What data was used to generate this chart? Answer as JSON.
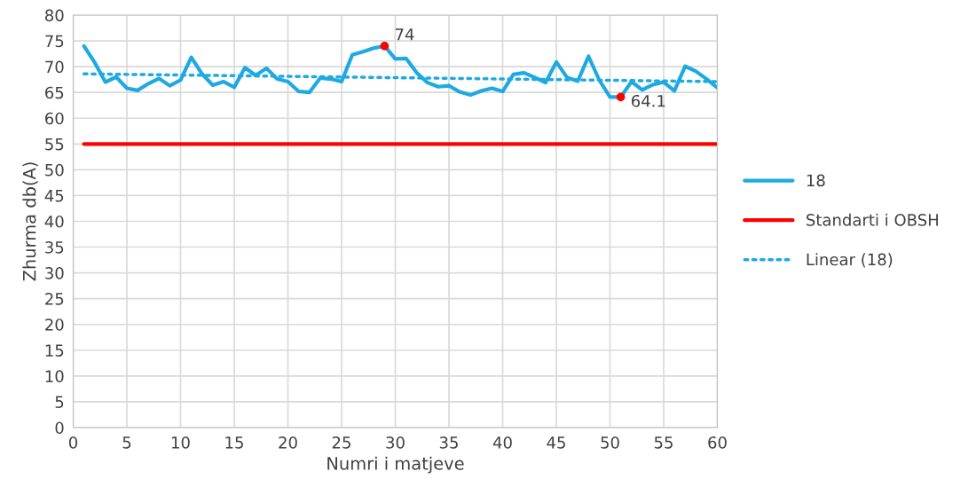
{
  "chart_data": {
    "type": "line",
    "xlabel": "Numri i matjeve",
    "ylabel": "Zhurma db(A)",
    "x": [
      1,
      2,
      3,
      4,
      5,
      6,
      7,
      8,
      9,
      10,
      11,
      12,
      13,
      14,
      15,
      16,
      17,
      18,
      19,
      20,
      21,
      22,
      23,
      24,
      25,
      26,
      27,
      28,
      29,
      30,
      31,
      32,
      33,
      34,
      35,
      36,
      37,
      38,
      39,
      40,
      41,
      42,
      43,
      44,
      45,
      46,
      47,
      48,
      49,
      50,
      51,
      52,
      53,
      54,
      55,
      56,
      57,
      58,
      59,
      60
    ],
    "series": [
      {
        "name": "18",
        "color": "#1eaae1",
        "line_style": "solid",
        "values": [
          74,
          70.8,
          67,
          68,
          65.8,
          65.4,
          66.7,
          67.7,
          66.3,
          67.4,
          71.8,
          68.6,
          66.4,
          67.1,
          66,
          69.8,
          68.3,
          69.7,
          67.6,
          67.1,
          65.2,
          65,
          67.8,
          67.6,
          67.1,
          72.3,
          72.9,
          73.6,
          74,
          71.5,
          71.6,
          68.8,
          66.9,
          66.1,
          66.3,
          65.1,
          64.5,
          65.3,
          65.8,
          65.2,
          68.5,
          68.8,
          67.9,
          66.9,
          70.9,
          67.9,
          67.2,
          72,
          67.4,
          64.1,
          64.1,
          67.1,
          65.5,
          66.5,
          67,
          65.3,
          70.1,
          69.1,
          67.6,
          65.9
        ]
      },
      {
        "name": "Standarti i OBSH",
        "color": "#ff0000",
        "line_style": "solid",
        "x": [
          1,
          60
        ],
        "values": [
          55,
          55
        ]
      },
      {
        "name": "Linear (18)",
        "color": "#1eaae1",
        "line_style": "dotted",
        "x": [
          1,
          60
        ],
        "values": [
          68.6,
          67.1
        ]
      },
      {
        "type": "scatter",
        "color": "#ff0000",
        "x": [
          29,
          51
        ],
        "values": [
          74,
          64.1
        ]
      }
    ],
    "annotations": [
      {
        "text": "74",
        "x": 29,
        "y": 74
      },
      {
        "text": "64.1",
        "x": 51,
        "y": 64.1
      }
    ],
    "xlim": [
      0,
      60
    ],
    "xticks": [
      0,
      5,
      10,
      15,
      20,
      25,
      30,
      35,
      40,
      45,
      50,
      55,
      60
    ],
    "ylim": [
      0,
      80
    ],
    "yticks": [
      0,
      5,
      10,
      15,
      20,
      25,
      30,
      35,
      40,
      45,
      50,
      55,
      60,
      65,
      70,
      75,
      80
    ],
    "grid": true,
    "legend": "right"
  }
}
